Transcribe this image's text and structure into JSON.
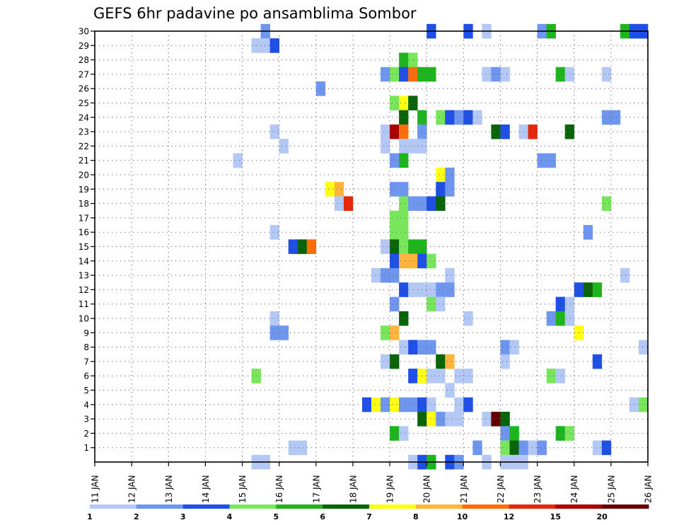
{
  "chart_data": {
    "type": "heatmap",
    "title": "GEFS 6hr padavine po ansamblima Sombor",
    "xlabel": "",
    "ylabel": "",
    "x_tick_labels": [
      "11 JAN",
      "12 JAN",
      "13 JAN",
      "14 JAN",
      "15 JAN",
      "16 JAN",
      "17 JAN",
      "18 JAN",
      "19 JAN",
      "20 JAN",
      "21 JAN",
      "22 JAN",
      "23 JAN",
      "24 JAN",
      "25 JAN",
      "26 JAN"
    ],
    "x_unit": "days, 6-hourly steps",
    "xlim": [
      11,
      26
    ],
    "y_tick_labels": [
      "1",
      "2",
      "3",
      "4",
      "5",
      "6",
      "7",
      "8",
      "9",
      "10",
      "11",
      "12",
      "13",
      "14",
      "15",
      "16",
      "17",
      "18",
      "19",
      "20",
      "21",
      "22",
      "23",
      "24",
      "25",
      "26",
      "27",
      "28",
      "29",
      "30"
    ],
    "ylim": [
      0,
      30
    ],
    "grid": true,
    "legend": {
      "placement": "bottom",
      "tick_labels": [
        "1",
        "2",
        "3",
        "4",
        "5",
        "6",
        "7",
        "8",
        "10",
        "12",
        "15",
        "20"
      ],
      "colors": [
        "#b4c8f5",
        "#6e96ee",
        "#1e4fe6",
        "#78e65a",
        "#1eb41e",
        "#0a640a",
        "#ffff14",
        "#ffb43c",
        "#ff6e0a",
        "#e6280a",
        "#aa0000",
        "#640000"
      ]
    },
    "cells": [
      [
        15.5,
        30,
        1
      ],
      [
        20,
        30,
        2
      ],
      [
        21,
        30,
        2
      ],
      [
        21.5,
        30,
        0
      ],
      [
        23,
        30,
        1
      ],
      [
        23.25,
        30,
        4
      ],
      [
        25.25,
        30,
        4
      ],
      [
        25.5,
        30,
        2
      ],
      [
        25.75,
        30,
        2
      ],
      [
        15.25,
        29,
        0
      ],
      [
        15.5,
        29,
        0
      ],
      [
        15.75,
        29,
        2
      ],
      [
        19.25,
        28,
        4
      ],
      [
        19.5,
        28,
        3
      ],
      [
        18.75,
        27,
        1
      ],
      [
        19,
        27,
        3
      ],
      [
        19.25,
        27,
        2
      ],
      [
        19.5,
        27,
        8
      ],
      [
        19.75,
        27,
        4
      ],
      [
        20,
        27,
        4
      ],
      [
        21.5,
        27,
        0
      ],
      [
        21.75,
        27,
        1
      ],
      [
        22,
        27,
        0
      ],
      [
        23.5,
        27,
        4
      ],
      [
        23.75,
        27,
        0
      ],
      [
        24.75,
        27,
        0
      ],
      [
        17,
        26,
        1
      ],
      [
        19,
        25,
        3
      ],
      [
        19.25,
        25,
        6
      ],
      [
        19.5,
        25,
        5
      ],
      [
        19.25,
        24,
        5
      ],
      [
        19.75,
        24,
        4
      ],
      [
        20.25,
        24,
        3
      ],
      [
        20.5,
        24,
        2
      ],
      [
        20.75,
        24,
        1
      ],
      [
        21,
        24,
        2
      ],
      [
        21.25,
        24,
        0
      ],
      [
        24.75,
        24,
        1
      ],
      [
        25,
        24,
        1
      ],
      [
        15.75,
        23,
        0
      ],
      [
        18.75,
        23,
        0
      ],
      [
        19,
        23,
        10
      ],
      [
        19.25,
        23,
        8
      ],
      [
        19.75,
        23,
        1
      ],
      [
        21.75,
        23,
        5
      ],
      [
        22,
        23,
        2
      ],
      [
        22.5,
        23,
        0
      ],
      [
        22.75,
        23,
        9
      ],
      [
        23.75,
        23,
        5
      ],
      [
        16,
        22,
        0
      ],
      [
        18.75,
        22,
        0
      ],
      [
        19.25,
        22,
        0
      ],
      [
        19.5,
        22,
        0
      ],
      [
        19.75,
        22,
        0
      ],
      [
        14.75,
        21,
        0
      ],
      [
        19,
        21,
        1
      ],
      [
        19.25,
        21,
        4
      ],
      [
        23,
        21,
        1
      ],
      [
        23.25,
        21,
        1
      ],
      [
        20.25,
        20,
        6
      ],
      [
        20.5,
        20,
        1
      ],
      [
        17.25,
        19,
        6
      ],
      [
        17.5,
        19,
        7
      ],
      [
        19,
        19,
        1
      ],
      [
        19.25,
        19,
        1
      ],
      [
        20.25,
        19,
        2
      ],
      [
        20.5,
        19,
        1
      ],
      [
        17.5,
        18,
        0
      ],
      [
        17.75,
        18,
        9
      ],
      [
        19.25,
        18,
        3
      ],
      [
        19.5,
        18,
        1
      ],
      [
        19.75,
        18,
        1
      ],
      [
        20,
        18,
        2
      ],
      [
        20.25,
        18,
        5
      ],
      [
        24.75,
        18,
        3
      ],
      [
        19,
        17,
        3
      ],
      [
        19.25,
        17,
        3
      ],
      [
        15.75,
        16,
        0
      ],
      [
        19,
        16,
        3
      ],
      [
        19.25,
        16,
        3
      ],
      [
        24.25,
        16,
        1
      ],
      [
        16.25,
        15,
        2
      ],
      [
        16.5,
        15,
        5
      ],
      [
        16.75,
        15,
        8
      ],
      [
        18.75,
        15,
        0
      ],
      [
        19,
        15,
        5
      ],
      [
        19.25,
        15,
        3
      ],
      [
        19.5,
        15,
        4
      ],
      [
        19.75,
        15,
        4
      ],
      [
        19,
        14,
        2
      ],
      [
        19.25,
        14,
        7
      ],
      [
        19.5,
        14,
        7
      ],
      [
        19.75,
        14,
        2
      ],
      [
        20,
        14,
        3
      ],
      [
        18.5,
        13,
        0
      ],
      [
        18.75,
        13,
        1
      ],
      [
        19,
        13,
        1
      ],
      [
        20.5,
        13,
        0
      ],
      [
        25.25,
        13,
        0
      ],
      [
        19.25,
        12,
        2
      ],
      [
        19.5,
        12,
        0
      ],
      [
        19.75,
        12,
        0
      ],
      [
        20,
        12,
        0
      ],
      [
        20.25,
        12,
        1
      ],
      [
        20.5,
        12,
        1
      ],
      [
        24,
        12,
        2
      ],
      [
        24.25,
        12,
        5
      ],
      [
        24.5,
        12,
        4
      ],
      [
        19,
        11,
        1
      ],
      [
        20,
        11,
        3
      ],
      [
        20.25,
        11,
        0
      ],
      [
        23.5,
        11,
        2
      ],
      [
        23.75,
        11,
        0
      ],
      [
        15.75,
        10,
        0
      ],
      [
        19.25,
        10,
        5
      ],
      [
        21,
        10,
        0
      ],
      [
        23.25,
        10,
        1
      ],
      [
        23.5,
        10,
        4
      ],
      [
        23.75,
        10,
        0
      ],
      [
        15.75,
        9,
        1
      ],
      [
        16,
        9,
        1
      ],
      [
        18.75,
        9,
        3
      ],
      [
        19,
        9,
        7
      ],
      [
        24,
        9,
        6
      ],
      [
        19.25,
        8,
        0
      ],
      [
        19.5,
        8,
        2
      ],
      [
        19.75,
        8,
        1
      ],
      [
        20,
        8,
        1
      ],
      [
        22,
        8,
        1
      ],
      [
        22.25,
        8,
        0
      ],
      [
        25.75,
        8,
        0
      ],
      [
        18.75,
        7,
        0
      ],
      [
        19,
        7,
        5
      ],
      [
        20.25,
        7,
        5
      ],
      [
        20.5,
        7,
        7
      ],
      [
        22,
        7,
        0
      ],
      [
        24.5,
        7,
        2
      ],
      [
        15.25,
        6,
        3
      ],
      [
        19.5,
        6,
        2
      ],
      [
        19.75,
        6,
        6
      ],
      [
        20,
        6,
        0
      ],
      [
        20.25,
        6,
        0
      ],
      [
        20.75,
        6,
        0
      ],
      [
        21,
        6,
        0
      ],
      [
        23.25,
        6,
        3
      ],
      [
        23.5,
        6,
        0
      ],
      [
        20.5,
        5,
        0
      ],
      [
        18.25,
        4,
        2
      ],
      [
        18.5,
        4,
        6
      ],
      [
        18.75,
        4,
        1
      ],
      [
        19,
        4,
        6
      ],
      [
        19.25,
        4,
        1
      ],
      [
        19.5,
        4,
        1
      ],
      [
        19.75,
        4,
        2
      ],
      [
        20,
        4,
        0
      ],
      [
        20.75,
        4,
        0
      ],
      [
        21,
        4,
        2
      ],
      [
        25.5,
        4,
        0
      ],
      [
        25.75,
        4,
        3
      ],
      [
        19.75,
        3,
        5
      ],
      [
        20,
        3,
        6
      ],
      [
        20.25,
        3,
        1
      ],
      [
        20.5,
        3,
        0
      ],
      [
        20.75,
        3,
        0
      ],
      [
        21.5,
        3,
        0
      ],
      [
        21.75,
        3,
        11
      ],
      [
        22,
        3,
        5
      ],
      [
        19,
        2,
        4
      ],
      [
        19.25,
        2,
        0
      ],
      [
        22,
        2,
        1
      ],
      [
        22.25,
        2,
        4
      ],
      [
        23.5,
        2,
        4
      ],
      [
        23.75,
        2,
        3
      ],
      [
        16.25,
        1,
        0
      ],
      [
        16.5,
        1,
        0
      ],
      [
        21.25,
        1,
        1
      ],
      [
        22,
        1,
        3
      ],
      [
        22.25,
        1,
        5
      ],
      [
        22.5,
        1,
        1
      ],
      [
        22.75,
        1,
        0
      ],
      [
        23,
        1,
        1
      ],
      [
        24.5,
        1,
        0
      ],
      [
        24.75,
        1,
        2
      ],
      [
        15.25,
        0,
        0
      ],
      [
        15.5,
        0,
        0
      ],
      [
        19.5,
        0,
        0
      ],
      [
        19.75,
        0,
        2
      ],
      [
        20,
        0,
        4
      ],
      [
        20.5,
        0,
        2
      ],
      [
        20.75,
        0,
        1
      ],
      [
        21.5,
        0,
        0
      ],
      [
        22,
        0,
        0
      ],
      [
        22.25,
        0,
        0
      ],
      [
        22.5,
        0,
        0
      ]
    ]
  }
}
